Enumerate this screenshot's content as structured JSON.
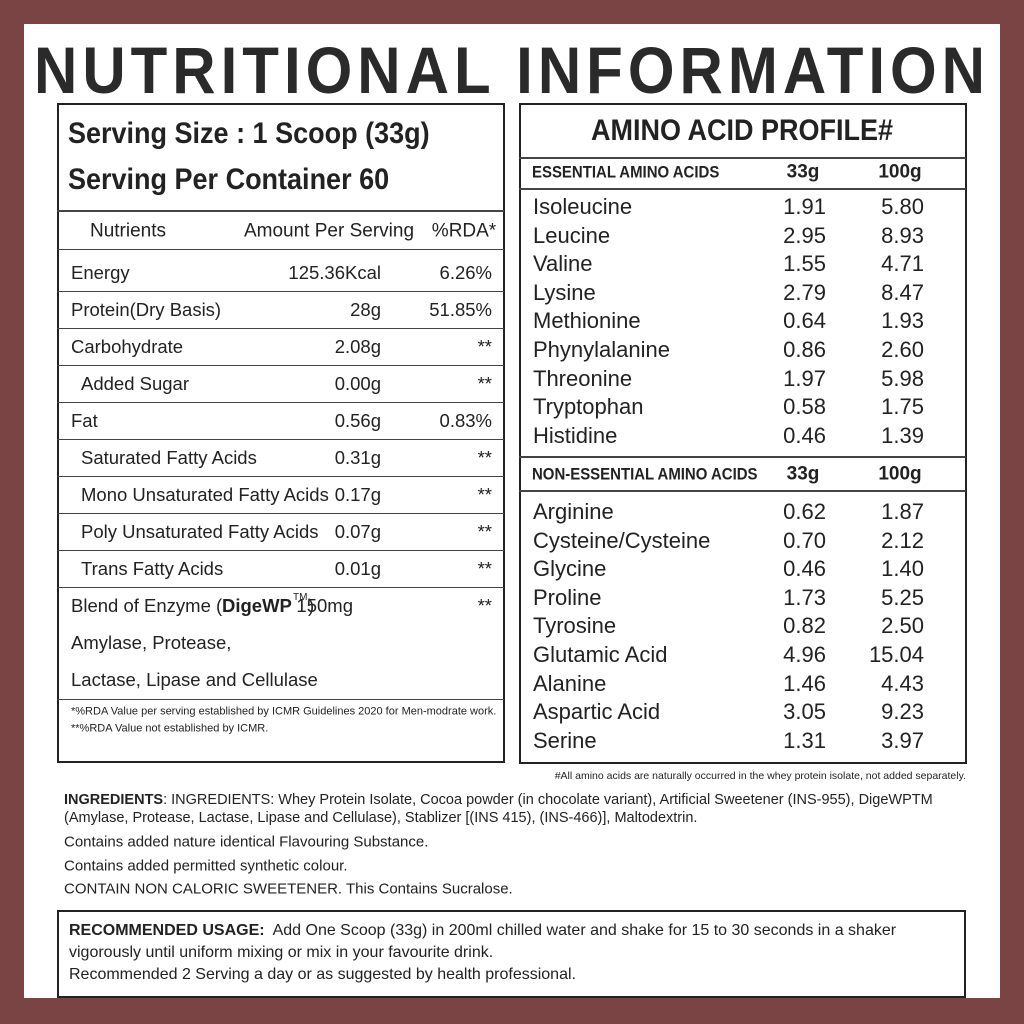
{
  "title": "NUTRITIONAL INFORMATION",
  "serving": {
    "size": "Serving Size : 1 Scoop (33g)",
    "per_container": "Serving Per Container 60"
  },
  "nutrition_table": {
    "headers": [
      "Nutrients",
      "Amount Per Serving",
      "%RDA*"
    ],
    "rows": [
      [
        "Energy",
        "125.36Kcal",
        "6.26%"
      ],
      [
        "Protein(Dry Basis)",
        "28g",
        "51.85%"
      ],
      [
        "Carbohydrate",
        "2.08g",
        "**"
      ],
      [
        "Added Sugar",
        "0.00g",
        "**"
      ],
      [
        "Fat",
        "0.56g",
        "0.83%"
      ],
      [
        "Saturated Fatty Acids",
        "0.31g",
        "**"
      ],
      [
        "Mono Unsaturated Fatty Acids",
        "0.17g",
        "**"
      ],
      [
        "Poly Unsaturated Fatty Acids",
        "0.07g",
        "**"
      ],
      [
        "Trans Fatty Acids",
        "0.01g",
        "**"
      ]
    ],
    "blend": {
      "prefix": "Blend of Enzyme (",
      "brand": "DigeWP",
      "tm": "TM",
      "suffix": ")",
      "amount": "150mg",
      "rda": "**",
      "lines": [
        "Amylase, Protease,",
        "Lactase, Lipase and Cellulase"
      ]
    },
    "footnotes": [
      "*%RDA Value per serving established by ICMR Guidelines 2020 for Men-modrate work.",
      "**%RDA Value not established by ICMR."
    ]
  },
  "amino": {
    "title": "AMINO ACID PROFILE#",
    "essential": {
      "headers": [
        "ESSENTIAL AMINO ACIDS",
        "33g",
        "100g"
      ],
      "rows": [
        [
          "Isoleucine",
          "1.91",
          "5.80"
        ],
        [
          "Leucine",
          "2.95",
          "8.93"
        ],
        [
          "Valine",
          "1.55",
          "4.71"
        ],
        [
          "Lysine",
          "2.79",
          "8.47"
        ],
        [
          "Methionine",
          "0.64",
          "1.93"
        ],
        [
          "Phynylalanine",
          "0.86",
          "2.60"
        ],
        [
          "Threonine",
          "1.97",
          "5.98"
        ],
        [
          "Tryptophan",
          "0.58",
          "1.75"
        ],
        [
          "Histidine",
          "0.46",
          "1.39"
        ]
      ]
    },
    "non_essential": {
      "headers": [
        "NON-ESSENTIAL AMINO ACIDS",
        "33g",
        "100g"
      ],
      "rows": [
        [
          "Arginine",
          "0.62",
          "1.87"
        ],
        [
          "Cysteine/Cysteine",
          "0.70",
          "2.12"
        ],
        [
          "Glycine",
          "0.46",
          "1.40"
        ],
        [
          "Proline",
          "1.73",
          "5.25"
        ],
        [
          "Tyrosine",
          "0.82",
          "2.50"
        ],
        [
          "Glutamic Acid",
          "4.96",
          "15.04"
        ],
        [
          "Alanine",
          "1.46",
          "4.43"
        ],
        [
          "Aspartic Acid",
          "3.05",
          "9.23"
        ],
        [
          "Serine",
          "1.31",
          "3.97"
        ]
      ]
    },
    "note": "#All amino acids are naturally occurred in the whey protein isolate, not added separately."
  },
  "ingredients": {
    "label": "INGREDIENTS",
    "text": ": INGREDIENTS: Whey Protein Isolate, Cocoa powder (in chocolate variant), Artificial Sweetener (INS-955), DigeWPTM (Amylase, Protease, Lactase, Lipase and Cellulase), Stablizer [(INS 415), (INS-466)], Maltodextrin.",
    "lines": [
      "Contains added nature identical Flavouring Substance.",
      "Contains added permitted synthetic colour.",
      "CONTAIN NON CALORIC SWEETENER. This Contains Sucralose."
    ]
  },
  "usage": {
    "label": "RECOMMENDED USAGE:",
    "text": "Add One Scoop (33g) in 200ml chilled water and shake for 15 to 30 seconds in a shaker vigorously until uniform mixing or mix in your favourite drink.",
    "line2": "Recommended 2 Serving a day or as suggested by health professional."
  }
}
